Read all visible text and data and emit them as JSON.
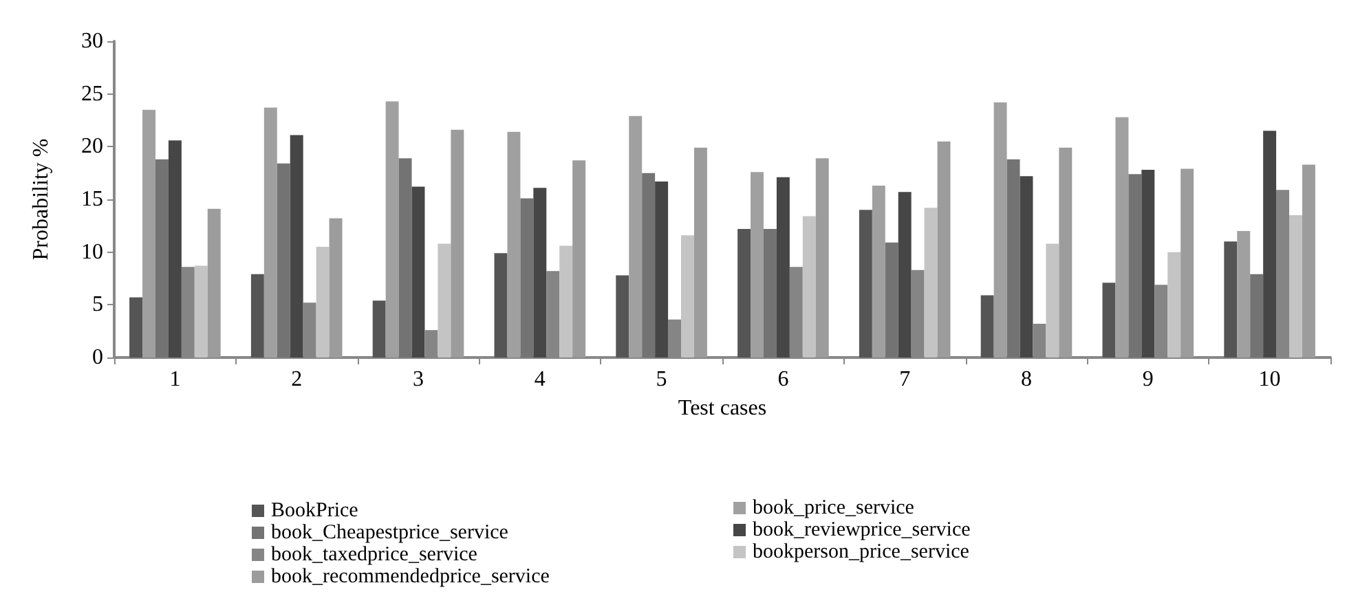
{
  "chart_data": {
    "type": "bar",
    "xlabel": "Test cases",
    "ylabel": "Probability %",
    "categories": [
      "1",
      "2",
      "3",
      "4",
      "5",
      "6",
      "7",
      "8",
      "9",
      "10"
    ],
    "series": [
      {
        "name": "BookPrice",
        "color": "#555555",
        "values": [
          5.7,
          7.9,
          5.4,
          9.9,
          7.8,
          12.2,
          14.0,
          5.9,
          7.1,
          11.0
        ]
      },
      {
        "name": "book_price_service",
        "color": "#a0a0a0",
        "values": [
          23.5,
          23.7,
          24.3,
          21.4,
          22.9,
          17.6,
          16.3,
          24.2,
          22.8,
          12.0
        ]
      },
      {
        "name": "book_Cheapestprice_service",
        "color": "#737373",
        "values": [
          18.8,
          18.4,
          18.9,
          15.1,
          17.5,
          12.2,
          10.9,
          18.8,
          17.4,
          7.9
        ]
      },
      {
        "name": "book_reviewprice_service",
        "color": "#464646",
        "values": [
          20.6,
          21.1,
          16.2,
          16.1,
          16.7,
          17.1,
          15.7,
          17.2,
          17.8,
          21.5
        ]
      },
      {
        "name": "book_taxedprice_service",
        "color": "#858585",
        "values": [
          8.6,
          5.2,
          2.6,
          8.2,
          3.6,
          8.6,
          8.3,
          3.2,
          6.9,
          15.9
        ]
      },
      {
        "name": "bookperson_price_service",
        "color": "#c4c4c4",
        "values": [
          8.7,
          10.5,
          10.8,
          10.6,
          11.6,
          13.4,
          14.2,
          10.8,
          10.0,
          13.5
        ]
      },
      {
        "name": "book_recommendedprice_service",
        "color": "#9c9c9c",
        "values": [
          14.1,
          13.2,
          21.6,
          18.7,
          19.9,
          18.9,
          20.5,
          19.9,
          17.9,
          18.3
        ]
      }
    ],
    "ylim": [
      0,
      30
    ],
    "yticks": [
      0,
      5,
      10,
      15,
      20,
      25,
      30
    ],
    "grid": false,
    "legend": "bottom"
  }
}
